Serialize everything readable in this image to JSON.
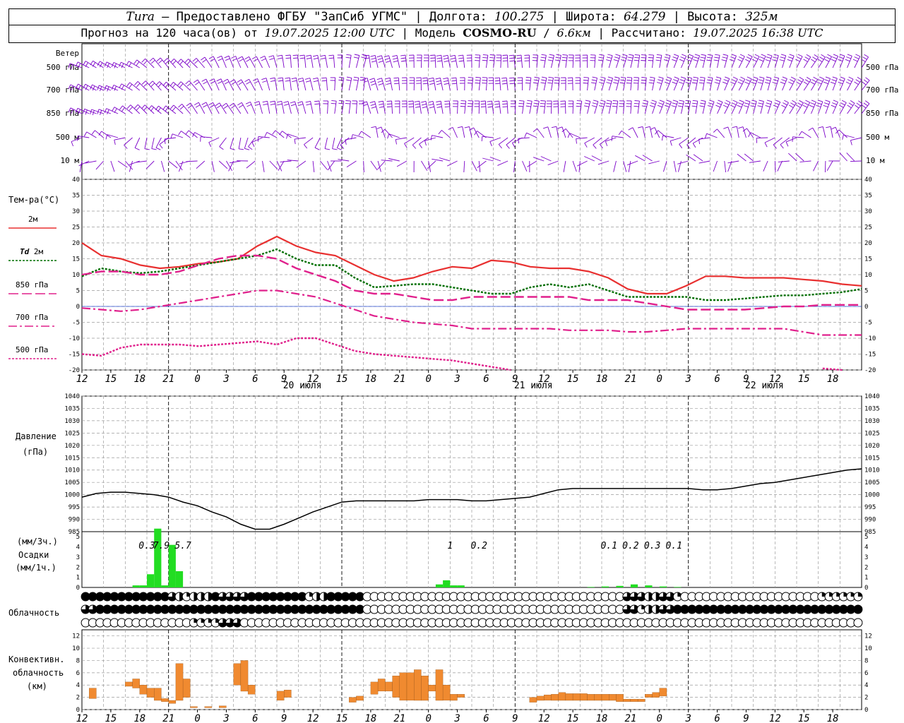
{
  "header": {
    "station": "Tura",
    "provider": "Предоставлено ФГБУ \"ЗапСиб УГМС\"",
    "lon_label": "Долгота:",
    "lon": "100.275",
    "lat_label": "Широта:",
    "lat": "64.279",
    "alt_label": "Высота:",
    "alt": "325м",
    "forecast_label": "Прогноз на 120 часа(ов) от",
    "start": "19.07.2025 12:00 UTC",
    "model_label": "Модель",
    "model": "COSMO-RU",
    "resolution": "6.6км",
    "calc_label": "Рассчитано:",
    "calc": "19.07.2025 16:38 UTC"
  },
  "colors": {
    "wind": "#7b00c8",
    "t2m": "#e83030",
    "td": "#006e00",
    "t850": "#e0208c",
    "precip": "#22dd22",
    "conv": "#f08a30"
  },
  "panels": {
    "wind": {
      "title": "Ветер",
      "levels": [
        "500 гПа",
        "700 гПа",
        "850 гПа",
        "500 м",
        "10 м"
      ]
    },
    "temp": {
      "title": "Тем-ра(°С)",
      "legend": [
        {
          "label": "2м"
        },
        {
          "label": "Td 2м"
        },
        {
          "label": "850 гПа"
        },
        {
          "label": "700 гПа"
        },
        {
          "label": "500 гПа"
        }
      ]
    },
    "pressure": {
      "title": "Давление",
      "unit": "(гПа)"
    },
    "precip": {
      "unit_top": "(мм/3ч.)",
      "title": "Осадки",
      "unit_bot": "(мм/1ч.)"
    },
    "cloud": {
      "title": "Облачность"
    },
    "conv": {
      "title1": "Конвективн.",
      "title2": "облачность",
      "unit": "(км)"
    }
  },
  "chart_data": {
    "type": "line",
    "x_hours": [
      "12",
      "15",
      "18",
      "21",
      "0",
      "3",
      "6",
      "9",
      "12",
      "15",
      "18",
      "21",
      "0",
      "3",
      "6",
      "9",
      "12",
      "15",
      "18",
      "21",
      "0",
      "3",
      "6",
      "9",
      "12",
      "15",
      "18"
    ],
    "dates": [
      {
        "label": "20 июля",
        "tick": 8
      },
      {
        "label": "21 июля",
        "tick": 16
      },
      {
        "label": "22 июля",
        "tick": 24
      }
    ],
    "temp": {
      "ylim": [
        -20,
        40
      ],
      "yticks": [
        -20,
        -15,
        -10,
        -5,
        0,
        5,
        10,
        15,
        20,
        25,
        30,
        35,
        40
      ],
      "series": [
        {
          "key": "t2m",
          "values": [
            20,
            16,
            15,
            13,
            12,
            12.5,
            13.5,
            14,
            15,
            19,
            22,
            19,
            17,
            16,
            13,
            10,
            8,
            9,
            11,
            12.5,
            12,
            14.5,
            14,
            12.5,
            12,
            12,
            11,
            9,
            5.5,
            4,
            4,
            6.5,
            9.5,
            9.5,
            9,
            9,
            9,
            8.5,
            8,
            7,
            6.5
          ]
        },
        {
          "key": "td",
          "values": [
            9.5,
            12,
            11,
            10.5,
            11,
            12,
            13,
            14,
            15,
            16,
            18,
            15,
            13,
            13,
            9,
            6,
            6.5,
            7,
            7,
            6,
            5,
            4,
            4,
            6,
            7,
            6,
            7,
            5,
            3,
            3,
            3,
            3,
            2,
            2,
            2.5,
            3,
            3.5,
            3.5,
            4,
            4.5,
            5.5
          ]
        },
        {
          "key": "t850",
          "values": [
            10,
            11,
            11,
            10,
            10,
            11,
            13,
            15,
            16,
            16,
            15,
            12,
            10,
            8,
            5,
            4,
            4,
            3,
            2,
            2,
            3,
            3,
            3,
            3,
            3,
            3,
            2,
            2,
            2,
            1,
            0,
            -1,
            -1,
            -1,
            -1,
            -0.5,
            0,
            0,
            0.5,
            0.5,
            0.5
          ]
        },
        {
          "key": "t700",
          "values": [
            -0.5,
            -1,
            -1.5,
            -1,
            0,
            1,
            2,
            3,
            4,
            5,
            5,
            4,
            3,
            1,
            -1,
            -3,
            -4,
            -5,
            -5.5,
            -6,
            -7,
            -7,
            -7,
            -7,
            -7,
            -7.5,
            -7.5,
            -7.5,
            -8,
            -8,
            -7.5,
            -7,
            -7,
            -7,
            -7,
            -7,
            -7,
            -8,
            -9,
            -9,
            -9
          ]
        },
        {
          "key": "t500",
          "values": [
            -15,
            -15.5,
            -13,
            -12,
            -12,
            -12,
            -12.5,
            -12,
            -11.5,
            -11,
            -12,
            -10,
            -10,
            -12,
            -14,
            -15,
            -15.5,
            -16,
            -16.5,
            -17,
            -18,
            -19,
            -20,
            null,
            null,
            null,
            null,
            null,
            null,
            null,
            null,
            null,
            null,
            null,
            null,
            null,
            null,
            null,
            -19.5,
            -20,
            null
          ]
        }
      ]
    },
    "pressure": {
      "ylim": [
        985,
        1040
      ],
      "yticks": [
        985,
        990,
        995,
        1000,
        1005,
        1010,
        1015,
        1020,
        1025,
        1030,
        1035,
        1040
      ],
      "values": [
        999,
        1000.5,
        1001,
        1001,
        1000.5,
        1000,
        999,
        997,
        995.5,
        993,
        991,
        988,
        986,
        986,
        988,
        990.5,
        993,
        995,
        997,
        997.5,
        997.5,
        997.5,
        997.5,
        997.5,
        998,
        998,
        998,
        997.5,
        997.5,
        998,
        998.5,
        999,
        1000.5,
        1002,
        1002.5,
        1002.5,
        1002.5,
        1002.5,
        1002.5,
        1002.5,
        1002.5,
        1002.5,
        1002.5,
        1002,
        1002,
        1002.5,
        1003.5,
        1004.5,
        1005,
        1006,
        1007,
        1008,
        1009,
        1010,
        1010.5
      ]
    },
    "precip": {
      "ylim": [
        0,
        5
      ],
      "yticks": [
        0,
        1,
        2,
        3,
        4,
        5
      ],
      "labels": [
        {
          "text": "0.3",
          "h": 9
        },
        {
          "text": "7.9",
          "h": 11
        },
        {
          "text": "5.7",
          "h": 14
        },
        {
          "text": "1",
          "h": 51
        },
        {
          "text": "0.2",
          "h": 55
        },
        {
          "text": "0.1",
          "h": 73
        },
        {
          "text": "0.2",
          "h": 76
        },
        {
          "text": "0.3",
          "h": 79
        },
        {
          "text": "0.1",
          "h": 82
        }
      ],
      "bars": [
        {
          "h": 7.5,
          "v": 0.2
        },
        {
          "h": 8.5,
          "v": 0.2
        },
        {
          "h": 9.5,
          "v": 1.3
        },
        {
          "h": 10.5,
          "v": 5.8
        },
        {
          "h": 11.5,
          "v": 0.2
        },
        {
          "h": 12.5,
          "v": 4.2
        },
        {
          "h": 13.5,
          "v": 1.6
        },
        {
          "h": 49.5,
          "v": 0.3
        },
        {
          "h": 50.5,
          "v": 0.7
        },
        {
          "h": 51.5,
          "v": 0.2
        },
        {
          "h": 52.5,
          "v": 0.2
        },
        {
          "h": 70.5,
          "v": 0.05
        },
        {
          "h": 72.5,
          "v": 0.1
        },
        {
          "h": 74.5,
          "v": 0.15
        },
        {
          "h": 76.5,
          "v": 0.3
        },
        {
          "h": 78.5,
          "v": 0.2
        },
        {
          "h": 80.5,
          "v": 0.1
        },
        {
          "h": 82.5,
          "v": 0.05
        }
      ]
    },
    "cloud": {
      "rows": [
        "444444444444321222433334444444412244444000000000000000000000000000000000000333223310000000000000000000111111",
        "334444444444444444444444444444444444444000000000000000000000000000000000000331223344444444444444444444444444",
        "000000000000000111133300000000000000000000000000000000000000000000000000000000000000000000000000000000000000"
      ]
    },
    "conv": {
      "ylim": [
        0,
        13
      ],
      "yticks": [
        0,
        2,
        4,
        6,
        8,
        10,
        12
      ],
      "bars": [
        {
          "h": 1,
          "b": 1.8,
          "t": 3.5
        },
        {
          "h": 6,
          "b": 3.8,
          "t": 4.5
        },
        {
          "h": 7,
          "b": 3.5,
          "t": 5
        },
        {
          "h": 8,
          "b": 2.5,
          "t": 4
        },
        {
          "h": 9,
          "b": 2,
          "t": 3.5
        },
        {
          "h": 10,
          "b": 1.5,
          "t": 3.5
        },
        {
          "h": 11,
          "b": 1.3,
          "t": 1.8
        },
        {
          "h": 12,
          "b": 1,
          "t": 1.5
        },
        {
          "h": 13,
          "b": 1.5,
          "t": 7.5
        },
        {
          "h": 14,
          "b": 2,
          "t": 5
        },
        {
          "h": 15,
          "b": 0.3,
          "t": 0.5
        },
        {
          "h": 17,
          "b": 0.3,
          "t": 0.5
        },
        {
          "h": 19,
          "b": 0.3,
          "t": 0.6
        },
        {
          "h": 21,
          "b": 4,
          "t": 7.5
        },
        {
          "h": 22,
          "b": 3,
          "t": 8
        },
        {
          "h": 23,
          "b": 2.5,
          "t": 4
        },
        {
          "h": 27,
          "b": 1.5,
          "t": 3
        },
        {
          "h": 28,
          "b": 2,
          "t": 3.2
        },
        {
          "h": 37,
          "b": 1.2,
          "t": 2
        },
        {
          "h": 38,
          "b": 1.5,
          "t": 2.2
        },
        {
          "h": 40,
          "b": 2.5,
          "t": 4.5
        },
        {
          "h": 41,
          "b": 3,
          "t": 5
        },
        {
          "h": 42,
          "b": 3,
          "t": 4.5
        },
        {
          "h": 43,
          "b": 2,
          "t": 5.5
        },
        {
          "h": 44,
          "b": 1.5,
          "t": 6
        },
        {
          "h": 45,
          "b": 1.5,
          "t": 6
        },
        {
          "h": 46,
          "b": 1.5,
          "t": 6.5
        },
        {
          "h": 47,
          "b": 1.5,
          "t": 5.5
        },
        {
          "h": 48,
          "b": 3,
          "t": 4
        },
        {
          "h": 49,
          "b": 1.5,
          "t": 6.5
        },
        {
          "h": 50,
          "b": 1.5,
          "t": 4
        },
        {
          "h": 51,
          "b": 1.5,
          "t": 2.5
        },
        {
          "h": 52,
          "b": 2,
          "t": 2.5
        },
        {
          "h": 62,
          "b": 1.2,
          "t": 2
        },
        {
          "h": 63,
          "b": 1.5,
          "t": 2.2
        },
        {
          "h": 64,
          "b": 1.5,
          "t": 2.4
        },
        {
          "h": 65,
          "b": 1.5,
          "t": 2.5
        },
        {
          "h": 66,
          "b": 1.5,
          "t": 2.8
        },
        {
          "h": 67,
          "b": 1.5,
          "t": 2.6
        },
        {
          "h": 68,
          "b": 1.5,
          "t": 2.6
        },
        {
          "h": 69,
          "b": 1.5,
          "t": 2.6
        },
        {
          "h": 70,
          "b": 1.5,
          "t": 2.5
        },
        {
          "h": 71,
          "b": 1.5,
          "t": 2.5
        },
        {
          "h": 72,
          "b": 1.5,
          "t": 2.5
        },
        {
          "h": 73,
          "b": 1.5,
          "t": 2.5
        },
        {
          "h": 74,
          "b": 1.3,
          "t": 2.5
        },
        {
          "h": 75,
          "b": 1.3,
          "t": 1.7
        },
        {
          "h": 76,
          "b": 1.3,
          "t": 1.7
        },
        {
          "h": 77,
          "b": 1.3,
          "t": 1.7
        },
        {
          "h": 78,
          "b": 2,
          "t": 2.5
        },
        {
          "h": 79,
          "b": 2,
          "t": 2.8
        },
        {
          "h": 80,
          "b": 2.2,
          "t": 3.5
        }
      ]
    }
  }
}
